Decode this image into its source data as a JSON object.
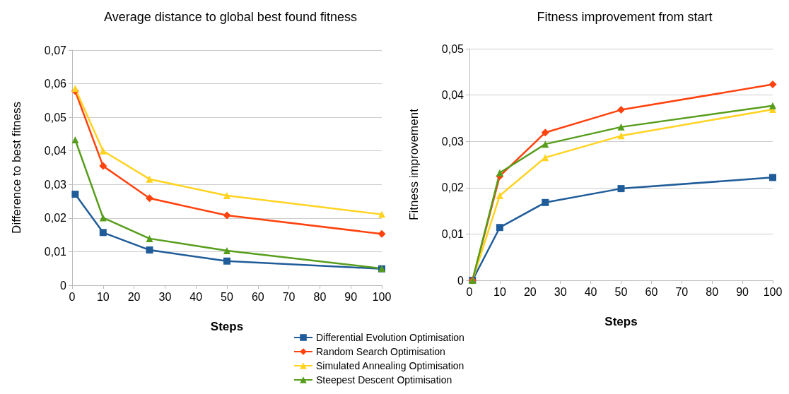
{
  "chart_data": [
    {
      "type": "line",
      "title": "Average distance to global best found fitness",
      "xlabel": "Steps",
      "ylabel": "Difference to best fitness",
      "x": [
        1,
        10,
        25,
        50,
        100
      ],
      "xlim": [
        0,
        100
      ],
      "xticks": [
        0,
        10,
        20,
        30,
        40,
        50,
        60,
        70,
        80,
        90,
        100
      ],
      "ylim": [
        0,
        0.07
      ],
      "yticks": [
        0,
        {
          "value": 0.01,
          "label": "0,01"
        },
        {
          "value": 0.02,
          "label": "0,02"
        },
        {
          "value": 0.03,
          "label": "0,03"
        },
        {
          "value": 0.04,
          "label": "0,04"
        },
        {
          "value": 0.05,
          "label": "0,05"
        },
        {
          "value": 0.06,
          "label": "0,06"
        },
        {
          "value": 0.07,
          "label": "0,07"
        }
      ],
      "grid": "y",
      "legend": false,
      "line_style": "solid",
      "series": [
        {
          "color": "#1f5c99",
          "marker": "square",
          "values": [
            0.0271,
            0.0157,
            0.0105,
            0.0072,
            0.0049
          ]
        },
        {
          "color": "#ff420e",
          "marker": "diamond",
          "values": [
            0.0578,
            0.0355,
            0.0259,
            0.0208,
            0.0153
          ]
        },
        {
          "color": "#ffd320",
          "marker": "triangle",
          "values": [
            0.0586,
            0.04,
            0.0316,
            0.0267,
            0.0211
          ]
        },
        {
          "color": "#579d1c",
          "marker": "triangle",
          "values": [
            0.0433,
            0.0201,
            0.0139,
            0.0103,
            0.005
          ]
        }
      ]
    },
    {
      "type": "line",
      "title": "Fitness improvement from start",
      "xlabel": "Steps",
      "ylabel": "Fitness improvement",
      "x": [
        1,
        10,
        25,
        50,
        100
      ],
      "xlim": [
        0,
        100
      ],
      "xticks": [
        0,
        10,
        20,
        30,
        40,
        50,
        60,
        70,
        80,
        90,
        100
      ],
      "ylim": [
        0,
        0.05
      ],
      "yticks": [
        0,
        {
          "value": 0.01,
          "label": "0,01"
        },
        {
          "value": 0.02,
          "label": "0,02"
        },
        {
          "value": 0.03,
          "label": "0,03"
        },
        {
          "value": 0.04,
          "label": "0,04"
        },
        {
          "value": 0.05,
          "label": "0,05"
        }
      ],
      "grid": "y",
      "legend": "bottom left",
      "line_style": "solid",
      "series": [
        {
          "name": "Differential Evolution Optimisation",
          "color": "#1f5c99",
          "marker": "square",
          "values": [
            0,
            0.0114,
            0.0168,
            0.0198,
            0.0222
          ]
        },
        {
          "name": "Random Search Optimisation",
          "color": "#ff420e",
          "marker": "diamond",
          "values": [
            0,
            0.0225,
            0.0319,
            0.0368,
            0.0423
          ]
        },
        {
          "name": "Simulated Annealing Optimisation",
          "color": "#ffd320",
          "marker": "triangle",
          "values": [
            0,
            0.0183,
            0.0265,
            0.0312,
            0.0369
          ]
        },
        {
          "name": "Steepest Descent Optimisation",
          "color": "#579d1c",
          "marker": "triangle",
          "values": [
            0,
            0.0232,
            0.0294,
            0.0331,
            0.0377
          ]
        }
      ]
    }
  ]
}
